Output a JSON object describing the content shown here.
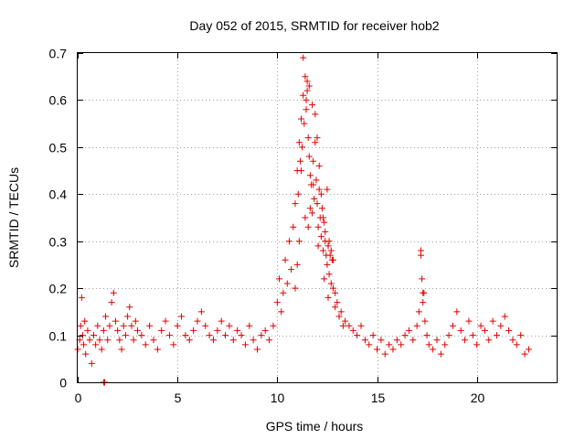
{
  "chart_data": {
    "type": "scatter",
    "title": "Day 052 of 2015, SRMTID for receiver hob2",
    "xlabel": "GPS time / hours",
    "ylabel": "SRMTID / TECUs",
    "xlim": [
      0,
      24
    ],
    "ylim": [
      0,
      0.7
    ],
    "xticks": [
      0,
      5,
      10,
      15,
      20
    ],
    "xtick_labels": [
      "0",
      "5",
      "10",
      "15",
      "20"
    ],
    "yticks": [
      0,
      0.1,
      0.2,
      0.3,
      0.4,
      0.5,
      0.6,
      0.7
    ],
    "ytick_labels": [
      "0",
      "0.1",
      "0.2",
      "0.3",
      "0.4",
      "0.5",
      "0.6",
      "0.7"
    ],
    "grid": true,
    "marker": "plus",
    "color": "#e00000",
    "series": [
      {
        "name": "SRMTID",
        "x": [
          0.0,
          0.1,
          0.15,
          0.2,
          0.25,
          0.3,
          0.35,
          0.4,
          0.5,
          0.6,
          0.7,
          0.8,
          0.9,
          1.0,
          1.1,
          1.2,
          1.3,
          1.4,
          1.5,
          1.6,
          1.7,
          1.8,
          1.9,
          2.0,
          2.1,
          2.2,
          2.3,
          2.4,
          2.5,
          2.6,
          2.7,
          2.8,
          2.9,
          3.0,
          3.2,
          3.4,
          3.6,
          3.8,
          4.0,
          4.2,
          4.4,
          4.6,
          4.8,
          5.0,
          5.2,
          5.4,
          5.6,
          5.8,
          6.0,
          6.2,
          6.4,
          6.6,
          6.8,
          7.0,
          7.2,
          7.4,
          7.6,
          7.8,
          8.0,
          8.2,
          8.4,
          8.6,
          8.8,
          9.0,
          9.2,
          9.4,
          9.6,
          9.8,
          10.0,
          10.1,
          10.2,
          10.3,
          10.4,
          10.5,
          10.6,
          10.7,
          10.8,
          10.9,
          11.0,
          11.05,
          11.1,
          11.15,
          11.2,
          11.25,
          11.3,
          11.35,
          11.4,
          11.45,
          11.5,
          11.55,
          11.6,
          11.65,
          11.7,
          11.75,
          11.8,
          11.85,
          11.9,
          11.95,
          12.0,
          12.05,
          12.1,
          12.15,
          12.2,
          12.25,
          12.3,
          12.35,
          12.4,
          12.45,
          12.5,
          12.55,
          12.6,
          12.65,
          12.7,
          12.75,
          12.8,
          12.9,
          13.0,
          13.2,
          13.4,
          13.6,
          13.8,
          14.0,
          14.2,
          14.4,
          14.6,
          14.8,
          15.0,
          15.2,
          15.4,
          15.6,
          15.8,
          16.0,
          16.2,
          16.4,
          16.6,
          16.8,
          17.0,
          17.1,
          17.2,
          17.3,
          17.4,
          17.5,
          17.6,
          17.8,
          18.0,
          18.2,
          18.4,
          18.6,
          18.8,
          19.0,
          19.2,
          19.4,
          19.6,
          19.8,
          20.0,
          20.2,
          20.4,
          20.6,
          20.8,
          21.0,
          21.2,
          21.4,
          21.6,
          21.8,
          22.0,
          22.2,
          22.4,
          22.6,
          11.3,
          11.5,
          11.2,
          11.45,
          11.6,
          11.75,
          11.9,
          12.0,
          12.1,
          12.2,
          12.3,
          12.4,
          12.5,
          12.6,
          12.7,
          12.8,
          11.8,
          11.4,
          11.55,
          11.65,
          12.05,
          12.35,
          12.55,
          10.9,
          11.0,
          11.1,
          12.9,
          13.1,
          13.3,
          17.2,
          17.25,
          17.3,
          17.35,
          1.3,
          1.35
        ],
        "y": [
          0.07,
          0.09,
          0.12,
          0.18,
          0.1,
          0.08,
          0.13,
          0.06,
          0.11,
          0.09,
          0.04,
          0.1,
          0.08,
          0.12,
          0.09,
          0.07,
          0.11,
          0.14,
          0.09,
          0.12,
          0.17,
          0.19,
          0.13,
          0.11,
          0.09,
          0.07,
          0.12,
          0.1,
          0.14,
          0.16,
          0.12,
          0.09,
          0.13,
          0.11,
          0.1,
          0.08,
          0.12,
          0.09,
          0.07,
          0.11,
          0.13,
          0.1,
          0.08,
          0.12,
          0.14,
          0.1,
          0.09,
          0.11,
          0.13,
          0.15,
          0.12,
          0.1,
          0.09,
          0.11,
          0.13,
          0.1,
          0.12,
          0.09,
          0.11,
          0.1,
          0.08,
          0.12,
          0.09,
          0.07,
          0.1,
          0.11,
          0.09,
          0.12,
          0.17,
          0.22,
          0.15,
          0.19,
          0.26,
          0.21,
          0.3,
          0.24,
          0.33,
          0.38,
          0.45,
          0.4,
          0.51,
          0.47,
          0.56,
          0.5,
          0.61,
          0.55,
          0.65,
          0.58,
          0.62,
          0.52,
          0.48,
          0.44,
          0.42,
          0.36,
          0.47,
          0.39,
          0.51,
          0.43,
          0.38,
          0.33,
          0.41,
          0.35,
          0.31,
          0.37,
          0.28,
          0.34,
          0.3,
          0.27,
          0.25,
          0.29,
          0.23,
          0.27,
          0.21,
          0.26,
          0.2,
          0.19,
          0.17,
          0.15,
          0.13,
          0.12,
          0.11,
          0.1,
          0.12,
          0.09,
          0.08,
          0.1,
          0.07,
          0.09,
          0.06,
          0.08,
          0.07,
          0.09,
          0.08,
          0.1,
          0.11,
          0.09,
          0.12,
          0.15,
          0.27,
          0.19,
          0.13,
          0.1,
          0.08,
          0.07,
          0.09,
          0.06,
          0.08,
          0.1,
          0.12,
          0.15,
          0.11,
          0.09,
          0.13,
          0.1,
          0.08,
          0.12,
          0.11,
          0.09,
          0.13,
          0.1,
          0.12,
          0.14,
          0.11,
          0.09,
          0.08,
          0.1,
          0.06,
          0.07,
          0.69,
          0.64,
          0.45,
          0.6,
          0.63,
          0.59,
          0.57,
          0.52,
          0.46,
          0.4,
          0.35,
          0.32,
          0.41,
          0.3,
          0.28,
          0.26,
          0.42,
          0.35,
          0.33,
          0.37,
          0.29,
          0.22,
          0.18,
          0.2,
          0.25,
          0.3,
          0.16,
          0.14,
          0.12,
          0.28,
          0.22,
          0.17,
          0.19,
          0.0,
          0.0
        ]
      }
    ]
  }
}
